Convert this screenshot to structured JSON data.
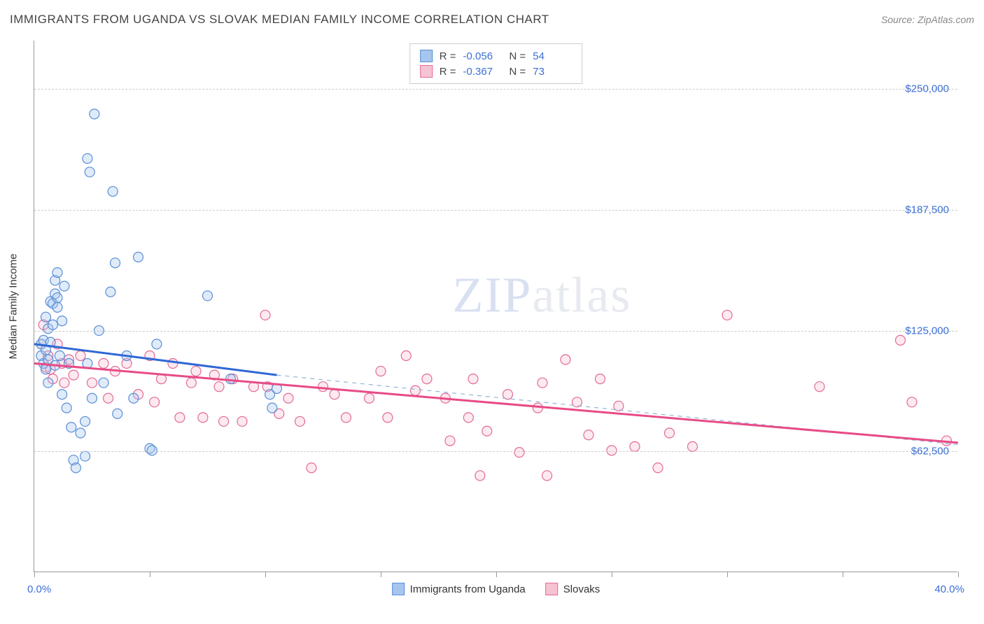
{
  "title": "IMMIGRANTS FROM UGANDA VS SLOVAK MEDIAN FAMILY INCOME CORRELATION CHART",
  "source_label": "Source: ",
  "source_name": "ZipAtlas.com",
  "watermark_a": "ZIP",
  "watermark_b": "atlas",
  "chart": {
    "type": "scatter",
    "background_color": "#ffffff",
    "grid_color": "#cccccc",
    "axis_color": "#999999",
    "tick_label_color": "#3b6fd6",
    "y_axis_title": "Median Family Income",
    "xlim": [
      0,
      40
    ],
    "ylim": [
      0,
      275000
    ],
    "x_tick_positions": [
      0,
      5,
      10,
      15,
      20,
      25,
      30,
      35,
      40
    ],
    "x_tick_labels_shown": {
      "0": "0.0%",
      "40": "40.0%"
    },
    "y_grid_values": [
      62500,
      125000,
      187500,
      250000
    ],
    "y_tick_labels": {
      "62500": "$62,500",
      "125000": "$125,000",
      "187500": "$187,500",
      "250000": "$250,000"
    },
    "marker_radius": 7,
    "marker_stroke_width": 1.2,
    "marker_fill_opacity": 0.35,
    "series": {
      "blue": {
        "label": "Immigrants from Uganda",
        "color_fill": "#a6c6ee",
        "color_stroke": "#5a8fd6",
        "R_label": "R = ",
        "R_value": "-0.056",
        "N_label": "N = ",
        "N_value": "54",
        "trend": {
          "x1": 0,
          "y1": 118000,
          "x2": 10.5,
          "y2": 102000,
          "solid_color": "#2f68d6",
          "width": 3
        },
        "trend_ext": {
          "x1": 10.5,
          "y1": 102000,
          "x2": 40,
          "y2": 66000,
          "dash_color": "#8fb5d8",
          "width": 1.2
        },
        "points": [
          [
            0.3,
            118000
          ],
          [
            0.3,
            112000
          ],
          [
            0.4,
            108000
          ],
          [
            0.4,
            120000
          ],
          [
            0.5,
            132000
          ],
          [
            0.5,
            115000
          ],
          [
            0.5,
            105000
          ],
          [
            0.6,
            126000
          ],
          [
            0.6,
            98000
          ],
          [
            0.6,
            110000
          ],
          [
            0.7,
            140000
          ],
          [
            0.7,
            119000
          ],
          [
            0.8,
            139000
          ],
          [
            0.8,
            128000
          ],
          [
            0.9,
            151000
          ],
          [
            0.9,
            144000
          ],
          [
            0.9,
            107000
          ],
          [
            1.0,
            155000
          ],
          [
            1.0,
            142000
          ],
          [
            1.0,
            137000
          ],
          [
            1.1,
            112000
          ],
          [
            1.2,
            92000
          ],
          [
            1.2,
            130000
          ],
          [
            1.3,
            148000
          ],
          [
            1.4,
            85000
          ],
          [
            1.5,
            108000
          ],
          [
            1.6,
            75000
          ],
          [
            1.7,
            58000
          ],
          [
            1.8,
            54000
          ],
          [
            2.0,
            72000
          ],
          [
            2.2,
            78000
          ],
          [
            2.2,
            60000
          ],
          [
            2.3,
            108000
          ],
          [
            2.3,
            214000
          ],
          [
            2.4,
            207000
          ],
          [
            2.5,
            90000
          ],
          [
            2.6,
            237000
          ],
          [
            2.8,
            125000
          ],
          [
            3.0,
            98000
          ],
          [
            3.3,
            145000
          ],
          [
            3.4,
            197000
          ],
          [
            3.5,
            160000
          ],
          [
            3.6,
            82000
          ],
          [
            4.0,
            112000
          ],
          [
            4.3,
            90000
          ],
          [
            4.5,
            163000
          ],
          [
            5.0,
            64000
          ],
          [
            5.1,
            63000
          ],
          [
            5.3,
            118000
          ],
          [
            7.5,
            143000
          ],
          [
            8.5,
            100000
          ],
          [
            10.2,
            92000
          ],
          [
            10.5,
            95000
          ],
          [
            10.3,
            85000
          ]
        ]
      },
      "pink": {
        "label": "Slovaks",
        "color_fill": "#f6c3d3",
        "color_stroke": "#e46a96",
        "R_label": "R = ",
        "R_value": "-0.367",
        "N_label": "N = ",
        "N_value": "73",
        "trend": {
          "x1": 0,
          "y1": 108000,
          "x2": 40,
          "y2": 67000,
          "solid_color": "#e84b86",
          "width": 3
        },
        "points": [
          [
            0.3,
            118000
          ],
          [
            0.4,
            128000
          ],
          [
            0.5,
            106000
          ],
          [
            0.6,
            112000
          ],
          [
            0.7,
            105000
          ],
          [
            0.8,
            100000
          ],
          [
            1.0,
            118000
          ],
          [
            1.2,
            108000
          ],
          [
            1.3,
            98000
          ],
          [
            1.5,
            110000
          ],
          [
            1.7,
            102000
          ],
          [
            2.0,
            112000
          ],
          [
            2.5,
            98000
          ],
          [
            3.0,
            108000
          ],
          [
            3.2,
            90000
          ],
          [
            3.5,
            104000
          ],
          [
            4.0,
            108000
          ],
          [
            4.5,
            92000
          ],
          [
            5.0,
            112000
          ],
          [
            5.2,
            88000
          ],
          [
            5.5,
            100000
          ],
          [
            6.0,
            108000
          ],
          [
            6.3,
            80000
          ],
          [
            6.8,
            98000
          ],
          [
            7.0,
            104000
          ],
          [
            7.3,
            80000
          ],
          [
            7.8,
            102000
          ],
          [
            8.0,
            96000
          ],
          [
            8.2,
            78000
          ],
          [
            8.6,
            100000
          ],
          [
            9.0,
            78000
          ],
          [
            9.5,
            96000
          ],
          [
            10.0,
            133000
          ],
          [
            10.1,
            96000
          ],
          [
            10.6,
            82000
          ],
          [
            11.0,
            90000
          ],
          [
            11.5,
            78000
          ],
          [
            12.0,
            54000
          ],
          [
            12.5,
            96000
          ],
          [
            13.0,
            92000
          ],
          [
            13.5,
            80000
          ],
          [
            14.5,
            90000
          ],
          [
            15.0,
            104000
          ],
          [
            15.3,
            80000
          ],
          [
            16.1,
            112000
          ],
          [
            16.5,
            94000
          ],
          [
            17.0,
            100000
          ],
          [
            17.8,
            90000
          ],
          [
            18.0,
            68000
          ],
          [
            18.8,
            80000
          ],
          [
            19.0,
            100000
          ],
          [
            19.3,
            50000
          ],
          [
            19.6,
            73000
          ],
          [
            20.5,
            92000
          ],
          [
            21.0,
            62000
          ],
          [
            21.8,
            85000
          ],
          [
            22.0,
            98000
          ],
          [
            22.2,
            50000
          ],
          [
            23.0,
            110000
          ],
          [
            23.5,
            88000
          ],
          [
            24.0,
            71000
          ],
          [
            24.5,
            100000
          ],
          [
            25.0,
            63000
          ],
          [
            25.3,
            86000
          ],
          [
            26.0,
            65000
          ],
          [
            27.0,
            54000
          ],
          [
            27.5,
            72000
          ],
          [
            28.5,
            65000
          ],
          [
            30.0,
            133000
          ],
          [
            34.0,
            96000
          ],
          [
            37.5,
            120000
          ],
          [
            38.0,
            88000
          ],
          [
            39.5,
            68000
          ]
        ]
      }
    }
  }
}
